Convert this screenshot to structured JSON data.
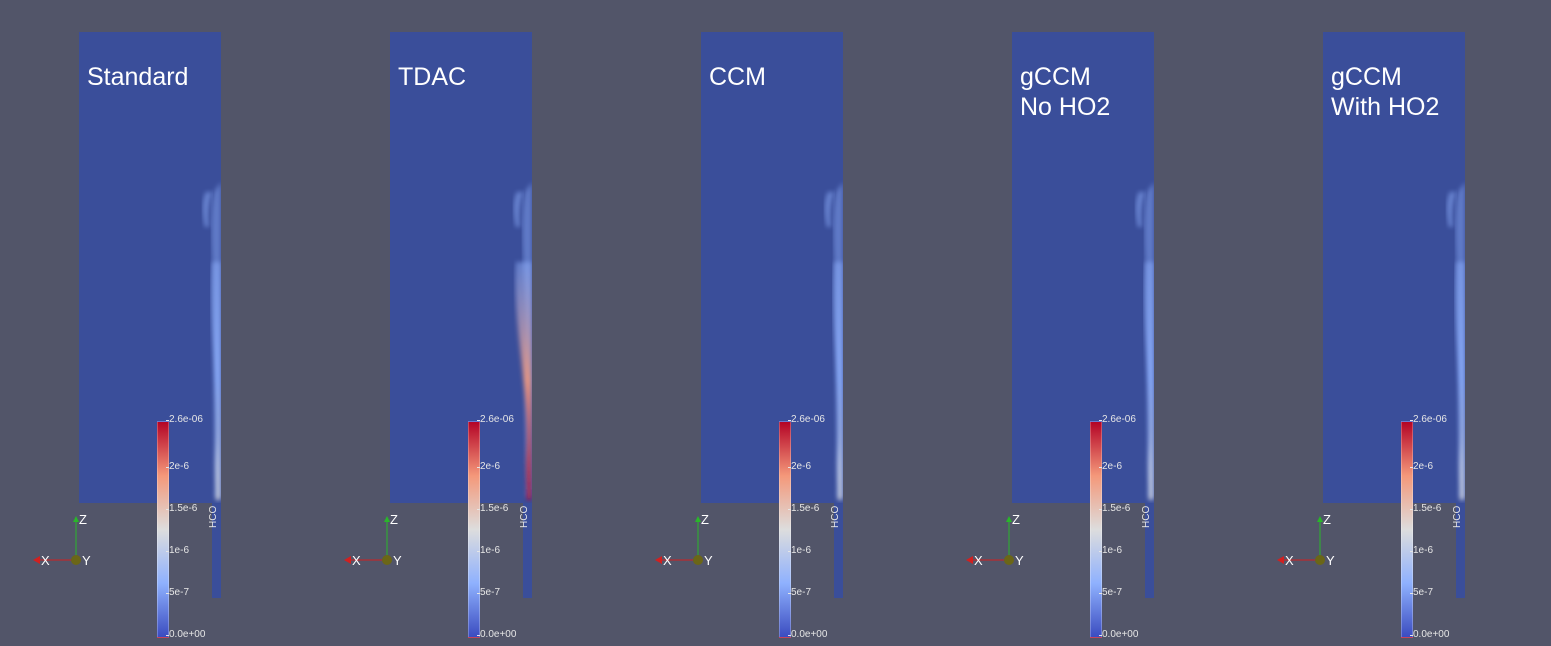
{
  "colors": {
    "background": "#525569",
    "field_low": "#3a4e9a",
    "colormap": [
      "#3b4cc0",
      "#8fb1fe",
      "#dddddd",
      "#f4987a",
      "#b40426"
    ],
    "axis_x": "#d12020",
    "axis_z": "#29b72a",
    "axis_y": "#6b6617"
  },
  "colorbar": {
    "title": "HCO",
    "ticks": [
      "2.6e-06",
      "2e-6",
      "1.5e-6",
      "1e-6",
      "5e-7",
      "0.0e+00"
    ]
  },
  "axes_triad": {
    "x": "X",
    "y": "Y",
    "z": "Z"
  },
  "panels": [
    {
      "label": "Standard",
      "peak_level": 0.45
    },
    {
      "label": "TDAC",
      "peak_level": 1.0
    },
    {
      "label": "CCM",
      "peak_level": 0.45
    },
    {
      "label": "gCCM\nNo HO2",
      "peak_level": 0.5
    },
    {
      "label": "gCCM\nWith HO2",
      "peak_level": 0.45
    }
  ]
}
